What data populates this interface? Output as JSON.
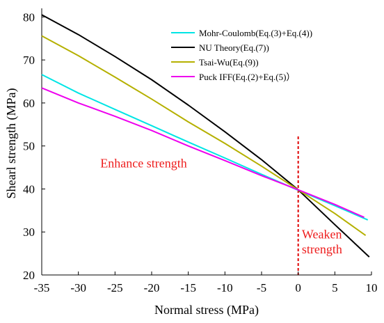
{
  "chart_data": {
    "type": "line",
    "title": "",
    "xlabel": "Normal stress (MPa)",
    "ylabel": "Shearl strength (MPa)",
    "xlim": [
      -35,
      10
    ],
    "ylim": [
      20,
      82
    ],
    "xticks": [
      "-35",
      "-30",
      "-25",
      "-20",
      "-15",
      "-10",
      "-5",
      "0",
      "5",
      "10"
    ],
    "yticks": [
      "20",
      "30",
      "40",
      "50",
      "60",
      "70",
      "80"
    ],
    "grid": false,
    "legend_position": "top-right",
    "series": [
      {
        "name": "Mohr-Coulomb(Eq.(3)+Eq.(4))",
        "color": "#00e5e5",
        "x": [
          -35,
          -30,
          -25,
          -20,
          -15,
          -10,
          -5,
          0,
          5,
          9.5
        ],
        "y": [
          66.6,
          62.3,
          58.5,
          54.7,
          50.9,
          47.2,
          43.4,
          39.7,
          36.1,
          32.8
        ]
      },
      {
        "name": "NU Theory(Eq.(7))",
        "color": "#000000",
        "x": [
          -35,
          -30,
          -25,
          -20,
          -15,
          -10,
          -5,
          0,
          5,
          9.7
        ],
        "y": [
          80.5,
          75.9,
          70.8,
          65.4,
          59.5,
          53.3,
          46.8,
          39.8,
          31.7,
          24.2
        ]
      },
      {
        "name": "Tsai-Wu(Eq.(9))",
        "color": "#b5b000",
        "x": [
          -35,
          -30,
          -25,
          -20,
          -15,
          -10,
          -5,
          0,
          5,
          9.2
        ],
        "y": [
          75.6,
          71.0,
          66.0,
          60.9,
          55.6,
          50.6,
          45.3,
          39.8,
          34.3,
          29.2
        ]
      },
      {
        "name": "Puck IFF(Eq.(2)+Eq.(5)）",
        "color": "#ee00ee",
        "x": [
          -35,
          -30,
          -25,
          -20,
          -15,
          -10,
          -5,
          0,
          5,
          9
        ],
        "y": [
          63.5,
          60.0,
          56.9,
          53.6,
          50.0,
          46.6,
          43.1,
          39.8,
          36.4,
          33.4
        ]
      }
    ],
    "annotations": [
      {
        "text": "Enhance strength",
        "x": -27,
        "y": 45,
        "color": "#ee1c1c"
      },
      {
        "text": "Weaken",
        "x": 0.5,
        "y": 28.5,
        "color": "#ee1c1c"
      },
      {
        "text": "strength",
        "x": 0.5,
        "y": 25,
        "color": "#ee1c1c"
      }
    ],
    "reference_line": {
      "x": 0,
      "color": "#e00000",
      "style": "dashed"
    }
  }
}
